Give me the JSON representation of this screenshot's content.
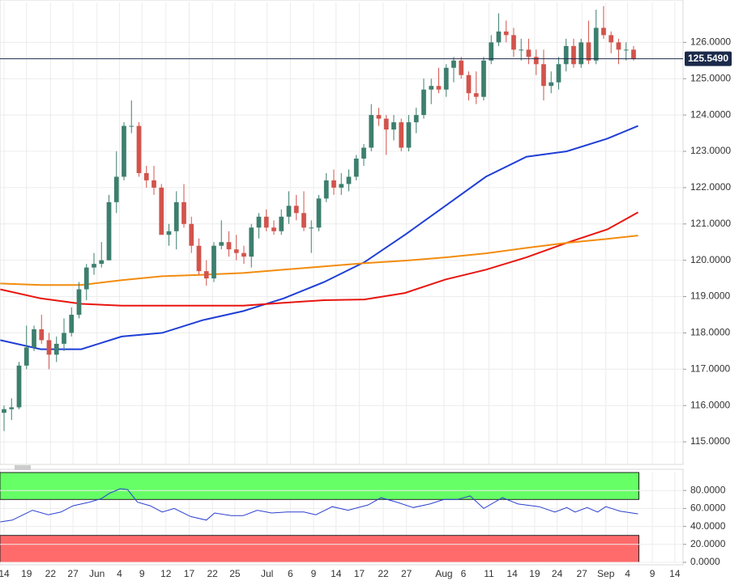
{
  "chart_data": [
    {
      "type": "candlestick",
      "xlim": [
        -0.54,
        90.6
      ],
      "ylim": [
        114.4,
        127.1
      ],
      "yticks": [
        {
          "value": 115,
          "label": "115.0000"
        },
        {
          "value": 116,
          "label": "116.0000"
        },
        {
          "value": 117,
          "label": "117.0000"
        },
        {
          "value": 118,
          "label": "118.0000"
        },
        {
          "value": 119,
          "label": "119.0000"
        },
        {
          "value": 120,
          "label": "120.0000"
        },
        {
          "value": 121,
          "label": "121.0000"
        },
        {
          "value": 122,
          "label": "122.0000"
        },
        {
          "value": 123,
          "label": "123.0000"
        },
        {
          "value": 124,
          "label": "124.0000"
        },
        {
          "value": 125,
          "label": "125.0000"
        },
        {
          "value": 126,
          "label": "126.0000"
        }
      ],
      "grid": true,
      "up_color": "#3d7f6e",
      "down_color": "#d2544c",
      "last_price": {
        "value": 125.549,
        "label": "125.5490"
      },
      "x": [
        0,
        1,
        2,
        3,
        4,
        5,
        6,
        7,
        8,
        9,
        10,
        11,
        12,
        13,
        14,
        15,
        16,
        17,
        18,
        19,
        20,
        21,
        22,
        23,
        24,
        25,
        26,
        27,
        28,
        29,
        30,
        31,
        32,
        33,
        34,
        35,
        36,
        37,
        38,
        39,
        40,
        41,
        42,
        43,
        44,
        45,
        46,
        47,
        48,
        49,
        50,
        51,
        52,
        53,
        54,
        55,
        56,
        57,
        58,
        59,
        60,
        61,
        62,
        63,
        64,
        65,
        66,
        67,
        68,
        69,
        70,
        71,
        72,
        73,
        74,
        75,
        76,
        77,
        78,
        79,
        80,
        81,
        82,
        83,
        84
      ],
      "open": [
        115.8,
        115.9,
        115.95,
        117.1,
        117.6,
        118.1,
        117.8,
        117.4,
        117.7,
        118.0,
        118.5,
        119.2,
        119.8,
        119.9,
        120.0,
        121.6,
        122.3,
        123.7,
        123.7,
        122.4,
        122.2,
        122.0,
        120.7,
        120.8,
        121.6,
        121.0,
        120.4,
        119.7,
        119.5,
        120.4,
        120.5,
        120.3,
        120.2,
        120.1,
        120.9,
        121.2,
        120.9,
        120.8,
        121.2,
        121.5,
        121.3,
        120.9,
        120.9,
        121.7,
        122.2,
        122.0,
        122.1,
        122.3,
        122.8,
        123.1,
        124.0,
        123.9,
        123.6,
        123.8,
        123.1,
        123.8,
        124.0,
        124.7,
        124.8,
        124.7,
        125.3,
        125.5,
        125.1,
        124.6,
        124.5,
        125.5,
        126.0,
        126.3,
        126.2,
        125.8,
        125.8,
        125.6,
        125.4,
        124.8,
        124.9,
        125.4,
        125.9,
        125.4,
        126.0,
        125.5,
        126.4,
        126.2,
        126.0,
        125.8,
        125.8
      ],
      "high": [
        116.0,
        116.2,
        117.2,
        118.2,
        118.2,
        118.5,
        118.0,
        117.9,
        118.4,
        118.7,
        119.4,
        119.9,
        120.2,
        120.5,
        121.8,
        123.0,
        123.8,
        124.4,
        123.8,
        122.6,
        122.6,
        122.1,
        121.0,
        121.9,
        122.1,
        121.2,
        120.6,
        120.0,
        120.5,
        121.1,
        120.8,
        120.7,
        120.4,
        121.0,
        121.3,
        121.4,
        121.1,
        121.4,
        121.9,
        121.8,
        121.9,
        121.1,
        121.8,
        122.4,
        122.5,
        122.4,
        122.5,
        122.9,
        123.2,
        124.3,
        124.2,
        124.0,
        124.0,
        123.9,
        124.0,
        124.2,
        125.0,
        125.0,
        125.3,
        125.4,
        125.6,
        125.6,
        125.2,
        125.2,
        125.6,
        126.2,
        126.8,
        126.6,
        126.4,
        126.1,
        126.1,
        125.8,
        125.8,
        125.2,
        125.6,
        126.1,
        126.1,
        126.1,
        126.6,
        126.9,
        127.0,
        126.3,
        126.1,
        126.0,
        125.9
      ],
      "low": [
        115.3,
        115.6,
        115.9,
        117.0,
        117.5,
        117.7,
        117.0,
        117.2,
        117.5,
        117.9,
        118.4,
        118.9,
        119.6,
        119.8,
        120.0,
        121.3,
        122.2,
        123.5,
        122.3,
        122.0,
        121.8,
        120.8,
        120.4,
        120.3,
        120.9,
        120.2,
        119.6,
        119.3,
        119.4,
        120.3,
        120.1,
        120.0,
        119.9,
        119.8,
        120.6,
        120.8,
        120.7,
        120.7,
        121.0,
        121.1,
        120.8,
        120.2,
        120.8,
        121.6,
        121.8,
        121.8,
        121.9,
        122.2,
        122.6,
        123.0,
        123.7,
        122.9,
        123.3,
        123.0,
        123.0,
        123.5,
        123.9,
        124.3,
        124.6,
        124.5,
        124.9,
        125.0,
        124.4,
        124.3,
        124.4,
        125.4,
        125.9,
        126.0,
        125.6,
        125.5,
        125.4,
        125.1,
        124.4,
        124.6,
        124.7,
        125.2,
        125.3,
        125.3,
        125.4,
        125.4,
        126.1,
        125.7,
        125.4,
        125.5,
        125.5
      ],
      "close": [
        115.9,
        115.95,
        117.1,
        117.6,
        118.1,
        117.8,
        117.4,
        117.7,
        118.0,
        118.5,
        119.2,
        119.8,
        119.9,
        120.0,
        121.6,
        122.3,
        123.7,
        123.7,
        122.4,
        122.2,
        122.0,
        120.7,
        120.8,
        121.6,
        121.0,
        120.4,
        119.7,
        119.5,
        120.4,
        120.5,
        120.3,
        120.2,
        120.1,
        120.9,
        121.2,
        120.9,
        120.8,
        121.2,
        121.5,
        121.3,
        120.9,
        120.9,
        121.7,
        122.2,
        122.0,
        122.1,
        122.3,
        122.8,
        123.1,
        124.0,
        123.9,
        123.6,
        123.8,
        123.1,
        123.8,
        124.0,
        124.7,
        124.8,
        124.7,
        125.3,
        125.5,
        125.1,
        124.6,
        124.5,
        125.5,
        126.0,
        126.3,
        126.2,
        125.8,
        125.8,
        125.6,
        125.4,
        124.8,
        124.9,
        125.4,
        125.9,
        125.4,
        126.0,
        125.5,
        126.4,
        126.2,
        126.0,
        125.8,
        125.8,
        125.549
      ],
      "lines": [
        {
          "color": "#1f3fd6",
          "x": [
            -0.5,
            4.9,
            10.3,
            15.7,
            21.1,
            26.5,
            31.9,
            37.3,
            42.7,
            48.1,
            53.5,
            58.9,
            64.3,
            69.7,
            75.1,
            80.5,
            84.6
          ],
          "values": [
            117.8,
            117.55,
            117.55,
            117.9,
            118.0,
            118.35,
            118.6,
            118.95,
            119.4,
            119.95,
            120.7,
            121.5,
            122.3,
            122.85,
            123.0,
            123.35,
            123.7
          ]
        },
        {
          "color": "#e8150f",
          "x": [
            -0.5,
            4.9,
            10.3,
            15.7,
            21.1,
            26.5,
            31.9,
            37.3,
            42.7,
            48.1,
            53.5,
            58.9,
            64.3,
            69.7,
            75.1,
            80.5,
            84.6
          ],
          "values": [
            119.2,
            118.95,
            118.8,
            118.75,
            118.75,
            118.75,
            118.75,
            118.83,
            118.9,
            118.92,
            119.1,
            119.47,
            119.74,
            120.08,
            120.48,
            120.85,
            121.32
          ]
        },
        {
          "color": "#f28c0f",
          "x": [
            -0.5,
            4.9,
            10.3,
            15.7,
            21.1,
            26.5,
            31.9,
            37.3,
            42.7,
            48.1,
            53.5,
            58.9,
            64.3,
            69.7,
            75.1,
            80.5,
            84.6
          ],
          "values": [
            119.36,
            119.32,
            119.32,
            119.45,
            119.56,
            119.6,
            119.65,
            119.74,
            119.83,
            119.92,
            119.99,
            120.08,
            120.19,
            120.34,
            120.48,
            120.59,
            120.68
          ]
        }
      ]
    },
    {
      "type": "line",
      "xlim": [
        -0.54,
        90.6
      ],
      "ylim": [
        0,
        100
      ],
      "yticks": [
        {
          "value": 0,
          "label": "0.0000"
        },
        {
          "value": 20,
          "label": "20.0000"
        },
        {
          "value": 40,
          "label": "40.0000"
        },
        {
          "value": 60,
          "label": "60.0000"
        },
        {
          "value": 80,
          "label": "80.0000"
        }
      ],
      "overbought": 70,
      "oversold": 30,
      "overbought_color": "#66ff66",
      "oversold_color": "#ff6b6b",
      "color": "#2a3fd0",
      "xticks": [
        {
          "value": 0,
          "label": "14"
        },
        {
          "value": 3,
          "label": "19"
        },
        {
          "value": 6.2,
          "label": "22"
        },
        {
          "value": 9.2,
          "label": "27"
        },
        {
          "value": 12.4,
          "label": "Jun"
        },
        {
          "value": 15.4,
          "label": "4"
        },
        {
          "value": 18.4,
          "label": "9"
        },
        {
          "value": 21.6,
          "label": "12"
        },
        {
          "value": 24.7,
          "label": "17"
        },
        {
          "value": 27.8,
          "label": "22"
        },
        {
          "value": 30.8,
          "label": "25"
        },
        {
          "value": 35.1,
          "label": "Jul"
        },
        {
          "value": 38.2,
          "label": "6"
        },
        {
          "value": 41.3,
          "label": "9"
        },
        {
          "value": 44.3,
          "label": "14"
        },
        {
          "value": 47.4,
          "label": "17"
        },
        {
          "value": 50.6,
          "label": "22"
        },
        {
          "value": 53.7,
          "label": "27"
        },
        {
          "value": 58.7,
          "label": "Aug"
        },
        {
          "value": 61.3,
          "label": "6"
        },
        {
          "value": 64.7,
          "label": "11"
        },
        {
          "value": 67.8,
          "label": "14"
        },
        {
          "value": 70.8,
          "label": "19"
        },
        {
          "value": 73.8,
          "label": "24"
        },
        {
          "value": 77.1,
          "label": "27"
        },
        {
          "value": 80.3,
          "label": "Sep"
        },
        {
          "value": 83.2,
          "label": "4"
        },
        {
          "value": 86.5,
          "label": "9"
        },
        {
          "value": 89.5,
          "label": "14"
        }
      ],
      "x": [
        -0.5,
        1.1,
        3.8,
        5.9,
        7.6,
        9.2,
        11.4,
        13,
        14.1,
        15.5,
        16.5,
        17.8,
        19.5,
        21.1,
        22.7,
        24.9,
        27,
        28.1,
        30.3,
        31.9,
        33.8,
        35.7,
        37.8,
        40,
        41.6,
        43.8,
        45.9,
        48.6,
        50.3,
        52.4,
        54.6,
        56.8,
        58.7,
        60.5,
        62.2,
        64,
        66.5,
        68.6,
        71.4,
        73.5,
        75.1,
        76.2,
        77.8,
        79.2,
        80.3,
        82.2,
        84.6
      ],
      "values": [
        45,
        47,
        58,
        53,
        56,
        63,
        67,
        71,
        77,
        82,
        81,
        67,
        63,
        56,
        60,
        51,
        47,
        55,
        52,
        52,
        58,
        55,
        56,
        56,
        53,
        62,
        58,
        64,
        72,
        67,
        61,
        65,
        70,
        70,
        74,
        60,
        72,
        65,
        62,
        56,
        61,
        56,
        61,
        56,
        62,
        57,
        54
      ]
    }
  ]
}
